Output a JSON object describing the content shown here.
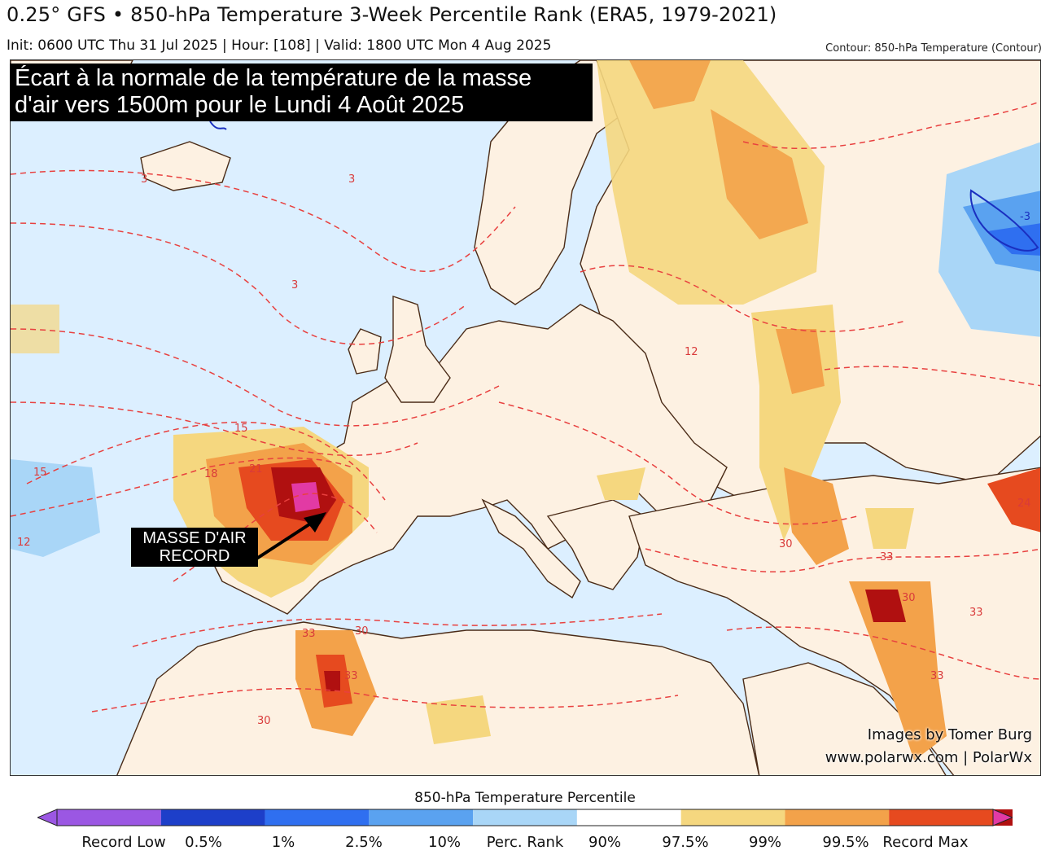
{
  "header": {
    "title": "0.25° GFS • 850-hPa Temperature 3-Week Percentile Rank (ERA5, 1979-2021)",
    "subtitle": "Init: 0600 UTC Thu 31 Jul 2025 | Hour: [108] | Valid: 1800 UTC Mon 4 Aug 2025",
    "contour_note": "Contour: 850-hPa Temperature (Contour)"
  },
  "map": {
    "headline_line1": "Écart à la normale de la température de la masse",
    "headline_line2": "d'air vers 1500m pour le Lundi 4 Août 2025",
    "annotation_line1": "MASSE D'AIR",
    "annotation_line2": "RECORD",
    "credit_line1": "Images by Tomer Burg",
    "credit_line2": "www.polarwx.com | PolarWx",
    "contour_labels": [
      "3",
      "3",
      "3",
      "12",
      "12",
      "15",
      "15",
      "18",
      "21",
      "24",
      "30",
      "30",
      "30",
      "30",
      "33",
      "33",
      "33",
      "33",
      "33",
      "-3"
    ]
  },
  "legend": {
    "title": "850-hPa Temperature Percentile",
    "labels": [
      "Record Low",
      "0.5%",
      "1%",
      "2.5%",
      "10%",
      "Perc. Rank",
      "90%",
      "97.5%",
      "99%",
      "99.5%",
      "Record Max"
    ],
    "colors": [
      "#9b57e3",
      "#1d3fc9",
      "#2f6ff0",
      "#5aa2f0",
      "#a9d6f7",
      "#ffffff",
      "#f5d77f",
      "#f3a24a",
      "#e64a1f",
      "#b01010",
      "#e23aa4"
    ]
  },
  "colors": {
    "ocean": "#dcefff",
    "land": "#fdf1e2",
    "contour": "#e8403f",
    "border": "#4a2b17"
  }
}
